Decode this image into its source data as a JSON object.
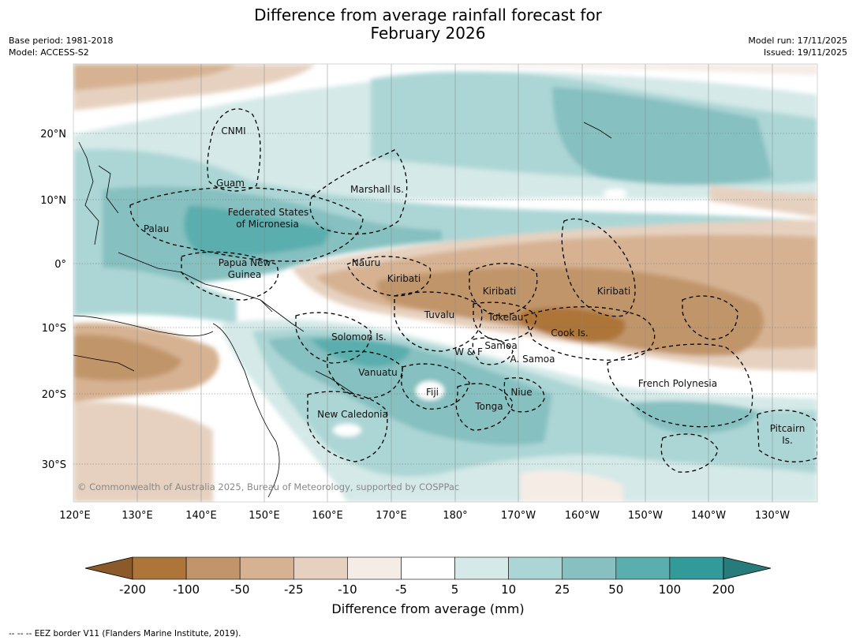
{
  "header": {
    "title_line1": "Difference from average rainfall forecast for",
    "title_line2": "February 2026",
    "base_period": "Base period: 1981-2018",
    "model": "Model: ACCESS-S2",
    "model_run": "Model run: 17/11/2025",
    "issued": "Issued: 19/11/2025"
  },
  "map": {
    "lon_labels": [
      "120°E",
      "130°E",
      "140°E",
      "150°E",
      "160°E",
      "170°E",
      "180°",
      "170°W",
      "160°W",
      "150°W",
      "140°W",
      "130°W"
    ],
    "lat_labels": [
      "20°N",
      "10°N",
      "0°",
      "10°S",
      "20°S",
      "30°S"
    ],
    "region_labels": [
      {
        "text": "CNMI"
      },
      {
        "text": "Guam"
      },
      {
        "text": "Marshall Is."
      },
      {
        "text": "Federated States"
      },
      {
        "text": "of Micronesia"
      },
      {
        "text": "Palau"
      },
      {
        "text": "Papua New"
      },
      {
        "text": "Guinea"
      },
      {
        "text": "Nauru"
      },
      {
        "text": "Kiribati"
      },
      {
        "text": "Kiribati"
      },
      {
        "text": "Kiribati"
      },
      {
        "text": "Tuvalu"
      },
      {
        "text": "Tokelau"
      },
      {
        "text": "Cook Is."
      },
      {
        "text": "Solomon Is."
      },
      {
        "text": "W & F"
      },
      {
        "text": "Samoa"
      },
      {
        "text": "A. Samoa"
      },
      {
        "text": "Vanuatu"
      },
      {
        "text": "Fiji"
      },
      {
        "text": "Niue"
      },
      {
        "text": "Tonga"
      },
      {
        "text": "French Polynesia"
      },
      {
        "text": "New Caledonia"
      },
      {
        "text": "Pitcairn"
      },
      {
        "text": "Is."
      }
    ],
    "copyright": "© Commonwealth of Australia 2025, Bureau of Meteorology, supported by COSPPac"
  },
  "legend": {
    "colors": [
      "#8b5a2b",
      "#ad7539",
      "#c1956a",
      "#d6b292",
      "#e6d1c0",
      "#f5ece6",
      "#ffffff",
      "#d4e9e8",
      "#acd6d5",
      "#86c0c0",
      "#5aaeae",
      "#339a9a",
      "#287b7b"
    ],
    "ticks": [
      "-200",
      "-100",
      "-50",
      "-25",
      "-10",
      "-5",
      "5",
      "10",
      "25",
      "50",
      "100",
      "200"
    ],
    "title": "Difference from average (mm)"
  },
  "footnote": "--  --  -- EEZ border V11 (Flanders Marine Institute, 2019)."
}
